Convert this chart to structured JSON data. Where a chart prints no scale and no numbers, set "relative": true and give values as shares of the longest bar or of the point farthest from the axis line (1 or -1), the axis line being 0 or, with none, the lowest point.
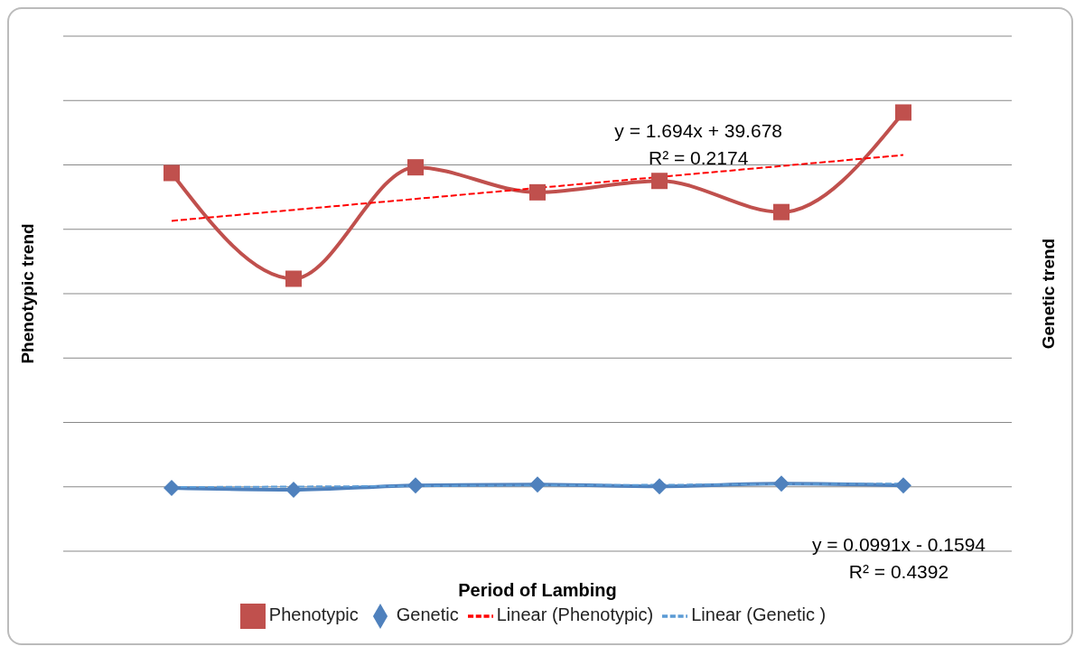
{
  "chart_data": {
    "type": "line",
    "relative": true,
    "xlabel": "Period of Lambing",
    "ylabel": "Phenotypic trend",
    "y2label": "Genetic trend",
    "categories": [
      null,
      null,
      null,
      null,
      null,
      null,
      null
    ],
    "series": [
      {
        "name": "Phenotypic",
        "color": "#c0504d",
        "marker": "square",
        "values": [
          0.862,
          0.621,
          0.875,
          0.818,
          0.844,
          0.773,
          1
        ]
      },
      {
        "name": "Genetic",
        "color": "#4f81bd",
        "marker": "diamond",
        "values": [
          0.144,
          0.14,
          0.15,
          0.152,
          0.148,
          0.154,
          0.15
        ]
      },
      {
        "name": "Linear (Phenotypic)",
        "color": "#ff0000",
        "marker": "none",
        "line_style": "dashed",
        "values": [
          0.753,
          null,
          null,
          null,
          null,
          null,
          0.903
        ]
      },
      {
        "name": "Linear (Genetic )",
        "color": "#5b9bd5",
        "marker": "none",
        "line_style": "dashed",
        "values": [
          0.146,
          null,
          null,
          null,
          null,
          null,
          0.154
        ]
      }
    ],
    "annotations": [
      "y = 1.694x + 39.678\nR² = 0.2174",
      "y = 0.0991x - 0.1594\nR² = 0.4392"
    ],
    "grid": "y",
    "legend": "bottom"
  }
}
